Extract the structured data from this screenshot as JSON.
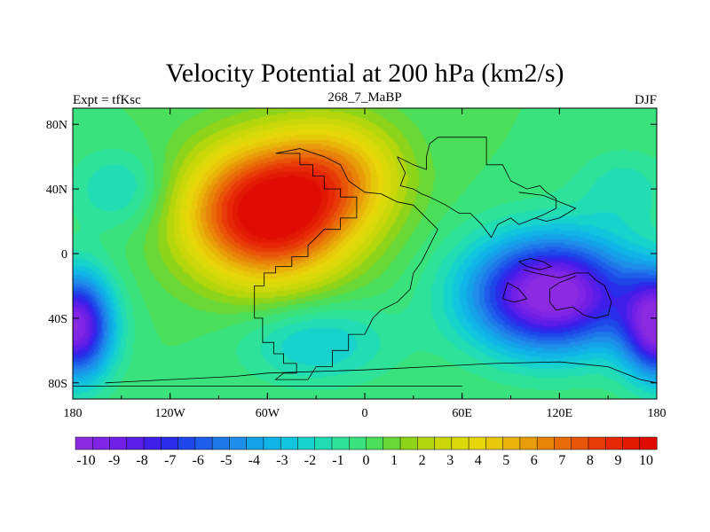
{
  "chart_data": {
    "type": "heatmap",
    "title": "Velocity Potential at 200 hPa (km2/s)",
    "left_label": "Expt = tfKsc",
    "center_label": "268_7_MaBP",
    "right_label": "DJF",
    "x_ticks": [
      {
        "value": -180,
        "label": "180"
      },
      {
        "value": -120,
        "label": "120W"
      },
      {
        "value": -60,
        "label": "60W"
      },
      {
        "value": 0,
        "label": "0"
      },
      {
        "value": 60,
        "label": "60E"
      },
      {
        "value": 120,
        "label": "120E"
      },
      {
        "value": 180,
        "label": "180"
      }
    ],
    "y_ticks": [
      {
        "value": 80,
        "label": "80N"
      },
      {
        "value": 40,
        "label": "40N"
      },
      {
        "value": 0,
        "label": "0"
      },
      {
        "value": -40,
        "label": "40S"
      },
      {
        "value": -80,
        "label": "80S"
      }
    ],
    "xlim": [
      -180,
      180
    ],
    "ylim": [
      -90,
      90
    ],
    "colorbar": {
      "levels": [
        -10,
        -9,
        -8,
        -7,
        -6,
        -5,
        -4,
        -3,
        -2,
        -1,
        0,
        1,
        2,
        3,
        4,
        5,
        6,
        7,
        8,
        9,
        10
      ],
      "labels": [
        "-10",
        "-9",
        "-8",
        "-7",
        "-6",
        "-5",
        "-4",
        "-3",
        "-2",
        "-1",
        "0",
        "1",
        "2",
        "3",
        "4",
        "5",
        "6",
        "7",
        "8",
        "9",
        "10"
      ],
      "colors": [
        "#8a2be2",
        "#7e25e6",
        "#7020e6",
        "#5a1ee8",
        "#3f1ee8",
        "#2a2ee8",
        "#1e46e8",
        "#1e5eea",
        "#1e78ea",
        "#1e8ee8",
        "#14a2e8",
        "#10b4e6",
        "#12c4de",
        "#18d2cc",
        "#22dcb4",
        "#2ee29a",
        "#3ae27e",
        "#4ade5a",
        "#6ad836",
        "#8ed41a",
        "#b4d60c",
        "#cad80a",
        "#dada0a",
        "#e6d60a",
        "#e8c80a",
        "#e8b40a",
        "#e89c0a",
        "#e88408",
        "#e86c08",
        "#e85408",
        "#e83c08",
        "#e62806",
        "#e21a04",
        "#de0c02"
      ]
    },
    "field_centers": [
      {
        "lon": -60,
        "lat": 25,
        "value": 10.5,
        "slon": 50,
        "slat": 42
      },
      {
        "lon": -15,
        "lat": 50,
        "value": 4.0,
        "slon": 40,
        "slat": 35
      },
      {
        "lon": 115,
        "lat": -25,
        "value": -10.5,
        "slon": 50,
        "slat": 35
      },
      {
        "lon": -178,
        "lat": -45,
        "value": -9.5,
        "slon": 22,
        "slat": 32
      },
      {
        "lon": 182,
        "lat": -45,
        "value": -9.5,
        "slon": 22,
        "slat": 32
      },
      {
        "lon": -150,
        "lat": 40,
        "value": -2.0,
        "slon": 30,
        "slat": 25
      },
      {
        "lon": 160,
        "lat": 40,
        "value": -1.5,
        "slon": 30,
        "slat": 25
      },
      {
        "lon": -30,
        "lat": -55,
        "value": -2.5,
        "slon": 45,
        "slat": 25
      }
    ],
    "background_value": 0,
    "coastlines": [
      [
        [
          -55,
          62
        ],
        [
          -40,
          62
        ],
        [
          -40,
          55
        ],
        [
          -32,
          55
        ],
        [
          -32,
          48
        ],
        [
          -25,
          48
        ],
        [
          -25,
          40
        ],
        [
          -15,
          40
        ],
        [
          -15,
          35
        ],
        [
          -5,
          35
        ],
        [
          -5,
          28
        ],
        [
          -5,
          22
        ],
        [
          -15,
          22
        ],
        [
          -15,
          15
        ],
        [
          -25,
          15
        ],
        [
          -30,
          10
        ],
        [
          -35,
          5
        ],
        [
          -35,
          -2
        ],
        [
          -45,
          -2
        ],
        [
          -45,
          -8
        ],
        [
          -55,
          -8
        ],
        [
          -55,
          -12
        ],
        [
          -62,
          -12
        ],
        [
          -62,
          -20
        ],
        [
          -68,
          -20
        ],
        [
          -68,
          -40
        ],
        [
          -63,
          -40
        ],
        [
          -63,
          -55
        ],
        [
          -56,
          -55
        ],
        [
          -56,
          -62
        ],
        [
          -50,
          -62
        ],
        [
          -50,
          -68
        ],
        [
          -42,
          -68
        ],
        [
          -42,
          -74
        ],
        [
          -50,
          -74
        ],
        [
          -55,
          -78
        ],
        [
          -35,
          -78
        ],
        [
          -30,
          -70
        ],
        [
          -20,
          -70
        ],
        [
          -20,
          -60
        ],
        [
          -10,
          -60
        ],
        [
          -10,
          -50
        ],
        [
          0,
          -50
        ],
        [
          5,
          -40
        ],
        [
          10,
          -35
        ],
        [
          20,
          -30
        ],
        [
          28,
          -22
        ],
        [
          30,
          -12
        ],
        [
          35,
          -5
        ],
        [
          40,
          5
        ],
        [
          45,
          15
        ],
        [
          40,
          20
        ],
        [
          30,
          30
        ],
        [
          20,
          32
        ],
        [
          10,
          37
        ],
        [
          0,
          38
        ],
        [
          -10,
          45
        ],
        [
          -15,
          55
        ],
        [
          -25,
          60
        ],
        [
          -40,
          65
        ],
        [
          -55,
          62
        ]
      ],
      [
        [
          20,
          60
        ],
        [
          30,
          55
        ],
        [
          38,
          52
        ],
        [
          38,
          60
        ],
        [
          40,
          68
        ],
        [
          45,
          72
        ],
        [
          55,
          72
        ],
        [
          75,
          72
        ],
        [
          75,
          55
        ],
        [
          85,
          55
        ],
        [
          90,
          45
        ],
        [
          100,
          40
        ],
        [
          108,
          42
        ],
        [
          112,
          38
        ],
        [
          118,
          34
        ],
        [
          118,
          28
        ],
        [
          110,
          24
        ],
        [
          100,
          20
        ],
        [
          95,
          18
        ],
        [
          90,
          22
        ],
        [
          82,
          18
        ],
        [
          78,
          10
        ],
        [
          72,
          18
        ],
        [
          65,
          25
        ],
        [
          58,
          25
        ],
        [
          50,
          30
        ],
        [
          40,
          35
        ],
        [
          35,
          37
        ],
        [
          30,
          40
        ],
        [
          22,
          42
        ],
        [
          25,
          50
        ],
        [
          20,
          60
        ]
      ],
      [
        [
          95,
          38
        ],
        [
          110,
          36
        ],
        [
          125,
          30
        ],
        [
          130,
          28
        ],
        [
          120,
          22
        ],
        [
          112,
          20
        ],
        [
          105,
          22
        ]
      ],
      [
        [
          95,
          -5
        ],
        [
          102,
          -3
        ],
        [
          110,
          -5
        ],
        [
          115,
          -8
        ],
        [
          108,
          -10
        ],
        [
          100,
          -8
        ],
        [
          95,
          -5
        ]
      ],
      [
        [
          98,
          -10
        ],
        [
          105,
          -12
        ],
        [
          120,
          -15
        ],
        [
          130,
          -12
        ],
        [
          138,
          -12
        ],
        [
          142,
          -16
        ],
        [
          148,
          -20
        ],
        [
          152,
          -30
        ],
        [
          150,
          -38
        ],
        [
          142,
          -40
        ],
        [
          135,
          -38
        ],
        [
          128,
          -33
        ],
        [
          118,
          -35
        ],
        [
          114,
          -30
        ],
        [
          114,
          -22
        ],
        [
          120,
          -18
        ],
        [
          130,
          -14
        ]
      ],
      [
        [
          85,
          -28
        ],
        [
          88,
          -18
        ],
        [
          95,
          -22
        ],
        [
          100,
          -28
        ],
        [
          92,
          -30
        ],
        [
          85,
          -28
        ]
      ],
      [
        [
          -160,
          -80
        ],
        [
          -120,
          -78
        ],
        [
          -80,
          -76
        ],
        [
          -60,
          -74
        ],
        [
          0,
          -72
        ],
        [
          40,
          -70
        ],
        [
          80,
          -68
        ],
        [
          120,
          -67
        ],
        [
          150,
          -70
        ],
        [
          170,
          -78
        ],
        [
          180,
          -80
        ]
      ],
      [
        [
          -180,
          -82
        ],
        [
          -120,
          -82
        ],
        [
          -60,
          -82
        ],
        [
          0,
          -82
        ],
        [
          60,
          -82
        ]
      ]
    ]
  }
}
